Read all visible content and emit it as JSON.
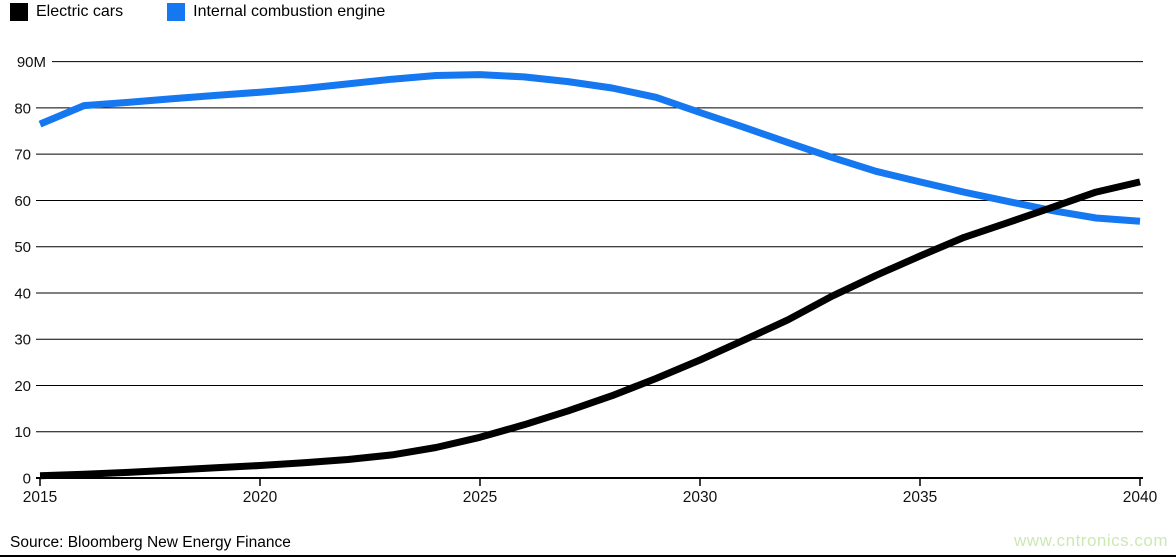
{
  "legend": {
    "items": [
      {
        "label": "Electric cars",
        "color": "#000000"
      },
      {
        "label": "Internal combustion engine",
        "color": "#1678f0"
      }
    ]
  },
  "footer": {
    "source": "Source: Bloomberg New Energy Finance",
    "watermark": "www.cntronics.com"
  },
  "colors": {
    "electric_cars": "#000000",
    "internal_combustion": "#1678f0",
    "watermark_green": "#cce8b4",
    "grid": "#000000",
    "axis_text": "#111111",
    "background": "#ffffff"
  },
  "chart_data": {
    "type": "line",
    "title": "",
    "xlabel": "",
    "ylabel": "",
    "xlim": [
      2015,
      2040
    ],
    "ylim": [
      0,
      90
    ],
    "grid": true,
    "legend_position": "top-left",
    "x": [
      2015,
      2016,
      2017,
      2018,
      2019,
      2020,
      2021,
      2022,
      2023,
      2024,
      2025,
      2026,
      2027,
      2028,
      2029,
      2030,
      2031,
      2032,
      2033,
      2034,
      2035,
      2036,
      2037,
      2038,
      2039,
      2040
    ],
    "series": [
      {
        "name": "Electric cars",
        "color": "#000000",
        "values": [
          0.5,
          0.8,
          1.2,
          1.7,
          2.2,
          2.7,
          3.3,
          4.0,
          5.0,
          6.6,
          8.8,
          11.5,
          14.5,
          17.8,
          21.5,
          25.5,
          29.8,
          34.2,
          39.3,
          43.8,
          48.0,
          52.0,
          55.2,
          58.5,
          61.8,
          64.0
        ]
      },
      {
        "name": "Internal combustion engine",
        "color": "#1678f0",
        "values": [
          76.5,
          80.5,
          81.2,
          82.0,
          82.7,
          83.4,
          84.2,
          85.2,
          86.2,
          87.0,
          87.2,
          86.7,
          85.7,
          84.3,
          82.3,
          79.0,
          75.8,
          72.5,
          69.3,
          66.3,
          64.0,
          61.8,
          59.8,
          57.8,
          56.2,
          55.5
        ]
      }
    ],
    "y_ticks": [
      {
        "label": "90M",
        "value": 90
      },
      {
        "label": "80",
        "value": 80
      },
      {
        "label": "70",
        "value": 70
      },
      {
        "label": "60",
        "value": 60
      },
      {
        "label": "50",
        "value": 50
      },
      {
        "label": "40",
        "value": 40
      },
      {
        "label": "30",
        "value": 30
      },
      {
        "label": "20",
        "value": 20
      },
      {
        "label": "10",
        "value": 10
      },
      {
        "label": "0",
        "value": 0
      }
    ],
    "x_ticks": [
      {
        "label": "2015",
        "value": 2015
      },
      {
        "label": "2020",
        "value": 2020
      },
      {
        "label": "2025",
        "value": 2025
      },
      {
        "label": "2030",
        "value": 2030
      },
      {
        "label": "2035",
        "value": 2035
      },
      {
        "label": "2040",
        "value": 2040
      }
    ]
  }
}
